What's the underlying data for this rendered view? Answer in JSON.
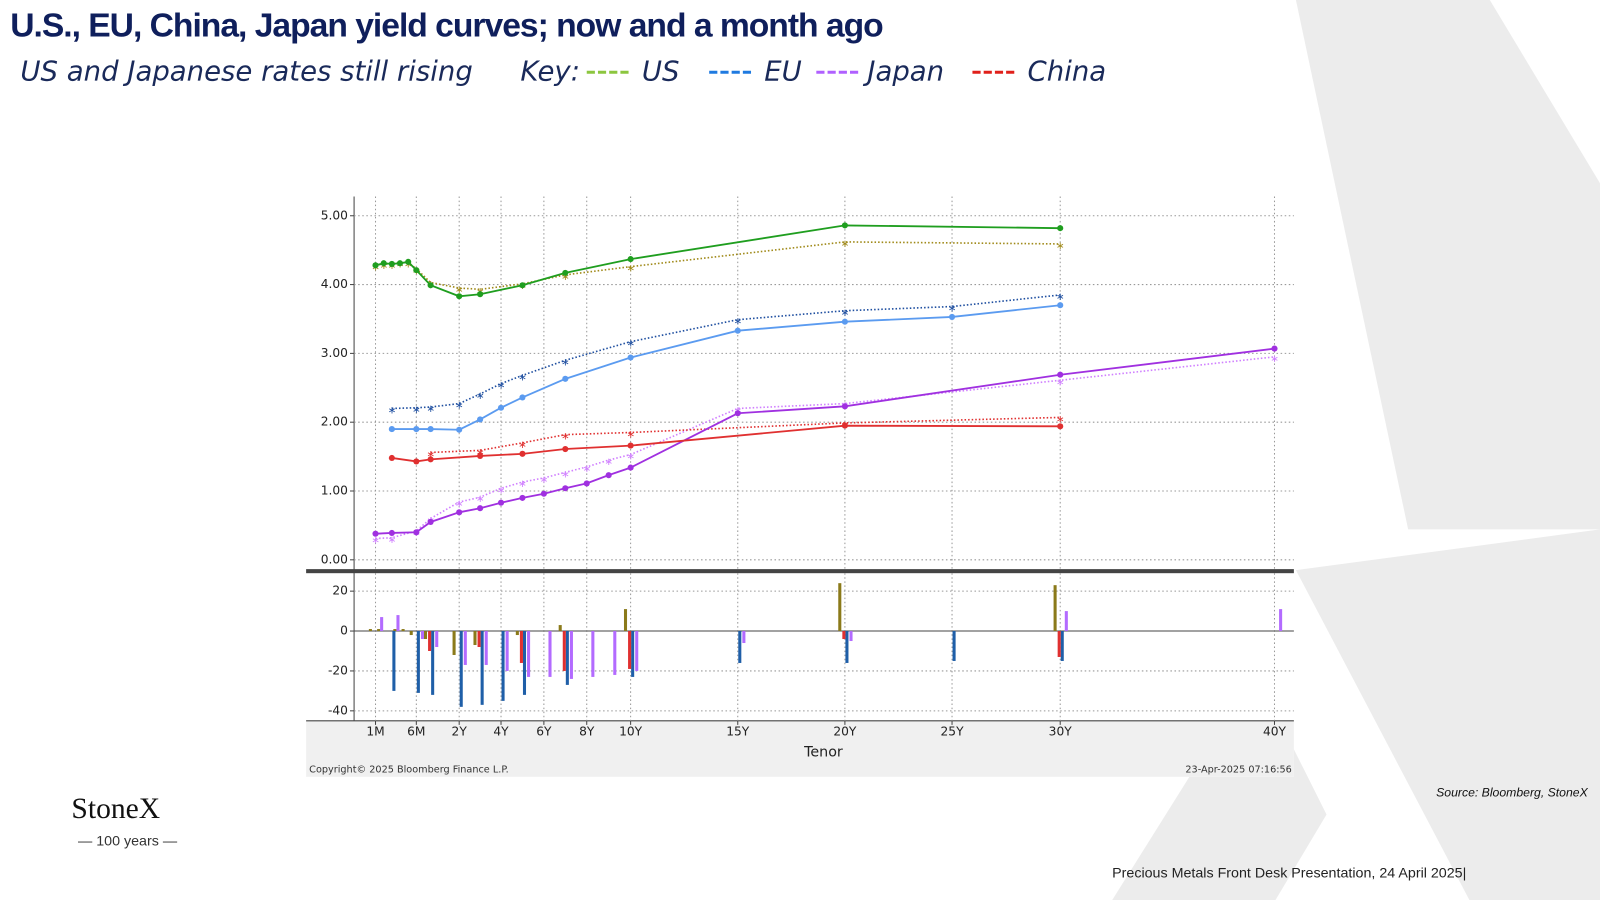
{
  "header": {
    "title": "U.S., EU, China, Japan yield curves; now and a month ago",
    "subtitle": "US and Japanese rates still rising",
    "key_label": "Key:"
  },
  "chart_data": [
    {
      "type": "line",
      "x_label": "Tenor",
      "xlim": [
        0,
        41
      ],
      "ylim": [
        -0.15,
        5.28
      ],
      "grid": true,
      "xticks": [
        {
          "value": 0.083,
          "label": "1M"
        },
        {
          "value": 0.5,
          "label": "6M"
        },
        {
          "value": 2,
          "label": "2Y"
        },
        {
          "value": 4,
          "label": "4Y"
        },
        {
          "value": 6,
          "label": "6Y"
        },
        {
          "value": 8,
          "label": "8Y"
        },
        {
          "value": 10,
          "label": "10Y"
        },
        {
          "value": 15,
          "label": "15Y"
        },
        {
          "value": 20,
          "label": "20Y"
        },
        {
          "value": 25,
          "label": "25Y"
        },
        {
          "value": 30,
          "label": "30Y"
        },
        {
          "value": 40,
          "label": "40Y"
        }
      ],
      "yticks": [
        {
          "value": 0,
          "label": "0.00"
        },
        {
          "value": 1,
          "label": "1.00"
        },
        {
          "value": 2,
          "label": "2.00"
        },
        {
          "value": 3,
          "label": "3.00"
        },
        {
          "value": 4,
          "label": "4.00"
        },
        {
          "value": 5,
          "label": "5.00"
        }
      ],
      "series": [
        {
          "name": "US",
          "key_color": "#8cc63f",
          "color": "#1f9e1f",
          "previous_color": "#a08a1a",
          "x": [
            0.083,
            0.167,
            0.25,
            0.333,
            0.417,
            0.5,
            1,
            2,
            3,
            5,
            7,
            10,
            20,
            30
          ],
          "values": [
            4.28,
            4.31,
            4.3,
            4.31,
            4.33,
            4.21,
            3.99,
            3.83,
            3.86,
            3.99,
            4.17,
            4.37,
            4.86,
            4.82
          ],
          "previous_values": [
            4.28,
            4.3,
            4.3,
            4.32,
            4.32,
            4.23,
            4.03,
            3.95,
            3.93,
            4.01,
            4.14,
            4.26,
            4.62,
            4.59
          ]
        },
        {
          "name": "EU",
          "key_color": "#1f7ae0",
          "color": "#5b9bf0",
          "previous_color": "#1f4fa0",
          "x": [
            0.25,
            0.5,
            1,
            2,
            3,
            4,
            5,
            7,
            10,
            15,
            20,
            25,
            30
          ],
          "values": [
            1.9,
            1.9,
            1.9,
            1.89,
            2.04,
            2.21,
            2.36,
            2.63,
            2.94,
            3.33,
            3.46,
            3.53,
            3.7
          ],
          "previous_values": [
            2.2,
            2.21,
            2.22,
            2.27,
            2.41,
            2.56,
            2.68,
            2.9,
            3.17,
            3.49,
            3.62,
            3.68,
            3.85
          ]
        },
        {
          "name": "Japan",
          "key_color": "#b060ff",
          "color": "#a030e0",
          "previous_color": "#d080ff",
          "x": [
            0.083,
            0.25,
            0.5,
            1,
            2,
            3,
            4,
            5,
            6,
            7,
            8,
            9,
            10,
            15,
            20,
            30,
            40
          ],
          "values": [
            0.38,
            0.39,
            0.4,
            0.55,
            0.69,
            0.75,
            0.83,
            0.9,
            0.96,
            1.04,
            1.11,
            1.23,
            1.34,
            2.13,
            2.23,
            2.69,
            3.07
          ],
          "previous_values": [
            0.31,
            0.32,
            0.42,
            0.6,
            0.84,
            0.91,
            1.04,
            1.13,
            1.19,
            1.27,
            1.35,
            1.45,
            1.53,
            2.2,
            2.27,
            2.61,
            2.95
          ]
        },
        {
          "name": "China",
          "key_color": "#e0201a",
          "color": "#e03030",
          "previous_color": "#e03030",
          "x": [
            0.25,
            0.5,
            1,
            3,
            5,
            7,
            10,
            20,
            30
          ],
          "values": [
            1.48,
            1.43,
            1.46,
            1.51,
            1.54,
            1.61,
            1.66,
            1.95,
            1.94
          ],
          "previous_values": [
            null,
            null,
            1.56,
            1.59,
            1.7,
            1.82,
            1.85,
            1.99,
            2.07
          ]
        }
      ]
    },
    {
      "type": "bar",
      "ylim": [
        -45,
        29
      ],
      "yticks": [
        -40,
        -20,
        0,
        20
      ],
      "series": [
        {
          "color": "#8b7a1a",
          "x": [
            0.083,
            0.167,
            0.25,
            0.333,
            0.417,
            0.5,
            1,
            2,
            3,
            5,
            7,
            10,
            20,
            30
          ],
          "values": [
            1,
            1,
            0,
            1,
            1,
            -2,
            -4,
            -12,
            -7,
            -2,
            3,
            11,
            24,
            23
          ]
        },
        {
          "color": "#1f5fa8",
          "x": [
            0.25,
            0.5,
            1,
            2,
            3,
            4,
            5,
            7,
            10,
            15,
            20,
            25,
            30
          ],
          "values": [
            -30,
            -31,
            -32,
            -38,
            -37,
            -35,
            -32,
            -27,
            -23,
            -16,
            -16,
            -15,
            -15
          ]
        },
        {
          "color": "#b36bff",
          "x": [
            0.083,
            0.25,
            0.5,
            1,
            2,
            3,
            4,
            5,
            6,
            7,
            8,
            9,
            10,
            15,
            20,
            30,
            40
          ],
          "values": [
            7,
            8,
            -4,
            -8,
            -17,
            -17,
            -20,
            -23,
            -23,
            -24,
            -23,
            -22,
            -20,
            -6,
            -5,
            10,
            11
          ]
        },
        {
          "color": "#e03030",
          "x": [
            0.25,
            0.5,
            1,
            3,
            5,
            7,
            10,
            20,
            30
          ],
          "values": [
            null,
            null,
            -10,
            -8,
            -16,
            -20,
            -19,
            -4,
            -13
          ]
        }
      ]
    }
  ],
  "credits": {
    "copyright": "Copyright© 2025 Bloomberg Finance L.P.",
    "timestamp": "23-Apr-2025 07:16:56"
  },
  "footer": {
    "source": "Source: Bloomberg, StoneX",
    "presentation": "Precious Metals Front Desk Presentation, 24 April 2025|",
    "logo": "StoneX",
    "logo_tagline": "— 100 years —"
  }
}
